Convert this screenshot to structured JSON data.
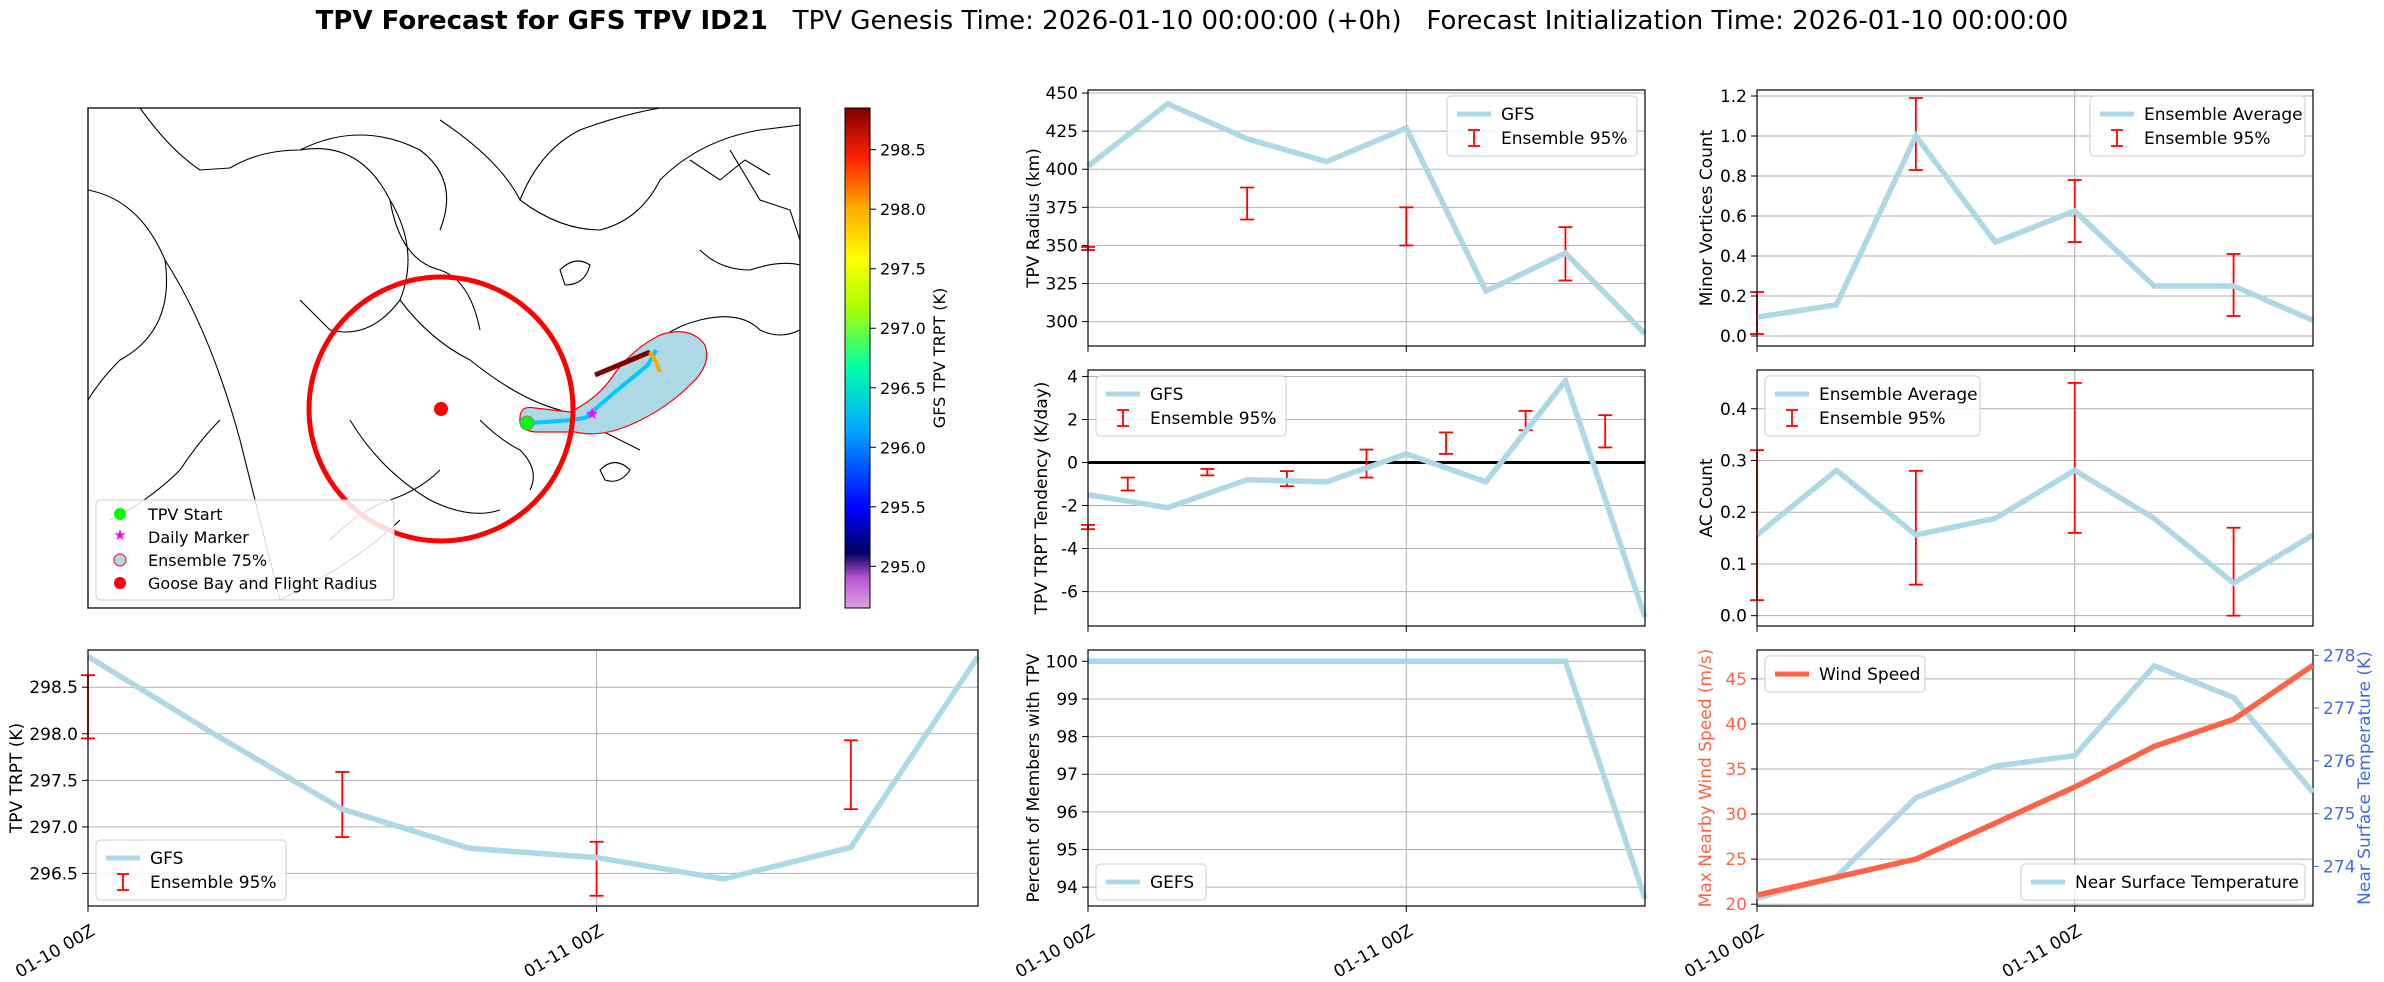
{
  "header": {
    "title_bold": "TPV Forecast for GFS TPV ID21",
    "title_rest": "   TPV Genesis Time: 2026-01-10 00:00:00 (+0h)   Forecast Initialization Time: 2026-01-10 00:00:00"
  },
  "colors": {
    "line": "#add8e6",
    "error": "#ff0000",
    "wind": "#ff6347",
    "temp_axis": "#4169e1",
    "wind_axis": "#ff6347",
    "circle": "#ff0000",
    "start": "#00ff00",
    "marker": "#ff00ff"
  },
  "chart_data": [
    {
      "id": "map",
      "type": "map",
      "legend": [
        "TPV Start",
        "Daily Marker",
        "Ensemble 75%",
        "Goose Bay and Flight Radius"
      ],
      "legend_placement": "lower-left",
      "colorbar": {
        "label": "GFS TPV TRPT (K)",
        "ticks": [
          "298.5",
          "298.0",
          "297.5",
          "297.0",
          "296.5",
          "296.0",
          "295.5",
          "295.0"
        ],
        "range": [
          294.65,
          298.85
        ]
      }
    },
    {
      "id": "trpt",
      "type": "line",
      "ylabel": "TPV TRPT (K)",
      "xticks": [
        "01-10 00Z",
        "01-11 00Z"
      ],
      "yticks": [
        "296.5",
        "297.0",
        "297.5",
        "298.0",
        "298.5"
      ],
      "ylim": [
        296.15,
        298.9
      ],
      "x": [
        0,
        0.25,
        0.5,
        0.75,
        1.0,
        1.25,
        1.5,
        1.75
      ],
      "series": [
        {
          "name": "GFS",
          "values": [
            298.83,
            297.99,
            297.19,
            296.77,
            296.67,
            296.44,
            296.78,
            298.83
          ]
        }
      ],
      "error_bars": {
        "name": "Ensemble 95%",
        "x": [
          0,
          0.5,
          1.0,
          1.5
        ],
        "low": [
          297.95,
          296.89,
          296.26,
          297.19
        ],
        "high": [
          298.63,
          297.59,
          296.84,
          297.93
        ]
      },
      "legend_placement": "lower-left",
      "grid": true
    },
    {
      "id": "radius",
      "type": "line",
      "ylabel": "TPV Radius (km)",
      "yticks": [
        "300",
        "325",
        "350",
        "375",
        "400",
        "425",
        "450"
      ],
      "ylim": [
        284,
        452
      ],
      "x": [
        0,
        0.25,
        0.5,
        0.75,
        1.0,
        1.25,
        1.5,
        1.75
      ],
      "series": [
        {
          "name": "GFS",
          "values": [
            402,
            443,
            420,
            405,
            427,
            320,
            345,
            292
          ]
        }
      ],
      "error_bars": {
        "name": "Ensemble 95%",
        "x": [
          0,
          0.5,
          1.0,
          1.5
        ],
        "low": [
          347,
          367,
          350,
          327
        ],
        "high": [
          349,
          388,
          375,
          362
        ]
      },
      "legend_placement": "upper-right",
      "grid": true
    },
    {
      "id": "tendency",
      "type": "line",
      "ylabel": "TPV TRPT Tendency (K/day)",
      "yticks": [
        "-6",
        "-4",
        "-2",
        "0",
        "2",
        "4"
      ],
      "ylim": [
        -7.6,
        4.3
      ],
      "x": [
        0,
        0.25,
        0.5,
        0.75,
        1.0,
        1.25,
        1.5,
        1.75
      ],
      "series": [
        {
          "name": "GFS",
          "values": [
            -1.5,
            -2.1,
            -0.8,
            -0.9,
            0.4,
            -0.9,
            3.8,
            -7.2
          ]
        }
      ],
      "error_bars": {
        "name": "Ensemble 95%",
        "x": [
          0,
          0.125,
          0.375,
          0.625,
          0.875,
          1.125,
          1.375,
          1.625,
          1.75
        ],
        "low": [
          -3.1,
          -1.3,
          -0.6,
          -1.1,
          -0.7,
          0.4,
          1.5,
          0.7,
          0
        ],
        "high": [
          -2.9,
          -0.7,
          -0.3,
          -0.4,
          0.6,
          1.4,
          2.4,
          2.2,
          0
        ]
      },
      "zero_line": true,
      "legend_placement": "upper-left",
      "grid": true
    },
    {
      "id": "percent",
      "type": "line",
      "ylabel": "Percent of Members with TPV",
      "xticks": [
        "01-10 00Z",
        "01-11 00Z"
      ],
      "yticks": [
        "94",
        "95",
        "96",
        "97",
        "98",
        "99",
        "100"
      ],
      "ylim": [
        93.5,
        100.3
      ],
      "x": [
        0,
        0.25,
        0.5,
        0.75,
        1.0,
        1.25,
        1.5,
        1.75
      ],
      "series": [
        {
          "name": "GEFS",
          "values": [
            100,
            100,
            100,
            100,
            100,
            100,
            100,
            93.7
          ]
        }
      ],
      "legend_placement": "lower-left",
      "grid": true
    },
    {
      "id": "minor",
      "type": "line",
      "ylabel": "Minor Vortices Count",
      "yticks": [
        "0.0",
        "0.2",
        "0.4",
        "0.6",
        "0.8",
        "1.0",
        "1.2"
      ],
      "ylim": [
        -0.05,
        1.23
      ],
      "x": [
        0,
        0.25,
        0.5,
        0.75,
        1.0,
        1.25,
        1.5,
        1.75
      ],
      "series": [
        {
          "name": "Ensemble Average",
          "values": [
            0.094,
            0.156,
            1.0,
            0.469,
            0.625,
            0.25,
            0.25,
            0.078
          ]
        }
      ],
      "error_bars": {
        "name": "Ensemble 95%",
        "x": [
          0,
          0.5,
          1.0,
          1.5
        ],
        "low": [
          0.01,
          0.83,
          0.47,
          0.1
        ],
        "high": [
          0.22,
          1.19,
          0.78,
          0.41
        ]
      },
      "legend_placement": "upper-right",
      "grid": true
    },
    {
      "id": "ac",
      "type": "line",
      "ylabel": "AC Count",
      "yticks": [
        "0.0",
        "0.1",
        "0.2",
        "0.3",
        "0.4"
      ],
      "ylim": [
        -0.02,
        0.475
      ],
      "x": [
        0,
        0.25,
        0.5,
        0.75,
        1.0,
        1.25,
        1.5,
        1.75
      ],
      "series": [
        {
          "name": "Ensemble Average",
          "values": [
            0.156,
            0.281,
            0.156,
            0.188,
            0.281,
            0.188,
            0.063,
            0.156
          ]
        }
      ],
      "error_bars": {
        "name": "Ensemble 95%",
        "x": [
          0,
          0.5,
          1.0,
          1.5
        ],
        "low": [
          0.03,
          0.06,
          0.16,
          0.0
        ],
        "high": [
          0.32,
          0.28,
          0.45,
          0.17
        ]
      },
      "legend_placement": "upper-left",
      "grid": true
    },
    {
      "id": "wind",
      "type": "line",
      "ylabel_left": "Max Nearby Wind Speed (m/s)",
      "ylabel_right": "Near Surface Temperature (K)",
      "xticks": [
        "01-10 00Z",
        "01-11 00Z"
      ],
      "yticks_left": [
        "20",
        "25",
        "30",
        "35",
        "40",
        "45"
      ],
      "yticks_right": [
        "274",
        "275",
        "276",
        "277",
        "278"
      ],
      "ylim_left": [
        19.8,
        48.2
      ],
      "ylim_right": [
        273.25,
        278.1
      ],
      "x": [
        0,
        0.25,
        0.5,
        0.75,
        1.0,
        1.25,
        1.5,
        1.75
      ],
      "series": [
        {
          "name": "Wind Speed",
          "axis": "left",
          "values": [
            21,
            23,
            25,
            29,
            33,
            37.5,
            40.5,
            46.5
          ]
        },
        {
          "name": "Near Surface Temperature",
          "axis": "right",
          "values": [
            273.4,
            273.8,
            275.3,
            275.9,
            276.1,
            277.8,
            277.2,
            275.4
          ]
        }
      ],
      "legend_placement": "upper-left / lower-right",
      "grid": true
    }
  ]
}
